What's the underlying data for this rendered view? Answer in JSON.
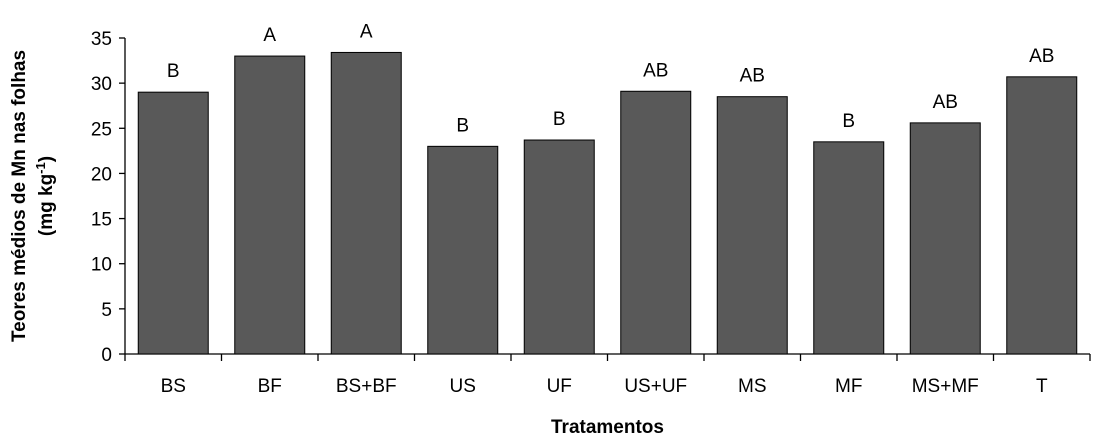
{
  "chart_data": {
    "type": "bar",
    "title": "",
    "xlabel": "Tratamentos",
    "ylabel_line1": "Teores médios de Mn nas folhas",
    "ylabel_line2_prefix": "(mg kg",
    "ylabel_line2_sup": "-1",
    "ylabel_line2_suffix": ")",
    "ylim": [
      0,
      35
    ],
    "yticks": [
      0,
      5,
      10,
      15,
      20,
      25,
      30,
      35
    ],
    "grid": false,
    "legend": "none",
    "categories": [
      "BS",
      "BF",
      "BS+BF",
      "US",
      "UF",
      "US+UF",
      "MS",
      "MF",
      "MS+MF",
      "T"
    ],
    "values": [
      29.0,
      33.0,
      33.4,
      23.0,
      23.7,
      29.1,
      28.5,
      23.5,
      25.6,
      30.7
    ],
    "significance": [
      "B",
      "A",
      "A",
      "B",
      "B",
      "AB",
      "AB",
      "B",
      "AB",
      "AB"
    ],
    "bar_color": "#595959",
    "bar_edge_color": "#000000"
  }
}
